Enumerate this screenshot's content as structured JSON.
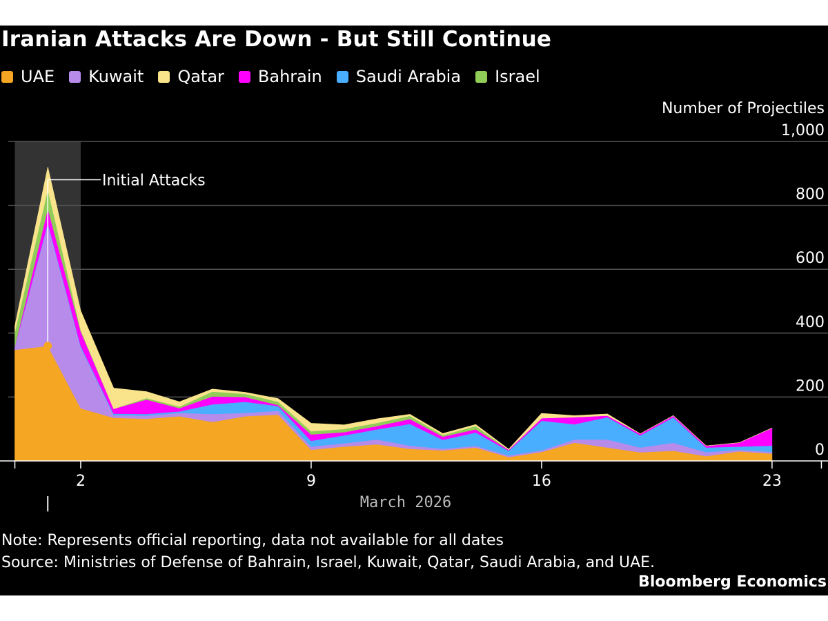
{
  "chart_data": {
    "type": "area",
    "stacked": true,
    "title": "Iranian Attacks Are Down - But Still Continue",
    "ylabel": "Number of Projectiles",
    "ylim": [
      0,
      1000
    ],
    "yticks": [
      0,
      200,
      400,
      600,
      800,
      1000
    ],
    "ytick_labels": [
      "0",
      "200",
      "400",
      "600",
      "800",
      "1,000"
    ],
    "xlabel": "March 2026",
    "x": [
      28,
      29,
      30,
      31,
      32,
      33,
      34,
      35,
      36,
      37,
      38,
      39,
      40,
      41,
      42,
      43,
      44,
      45,
      46,
      47,
      48,
      49,
      50,
      51
    ],
    "xlim": [
      27.8,
      52.7
    ],
    "xticks": [
      30,
      37,
      44,
      51
    ],
    "xtick_labels": [
      "2",
      "9",
      "16",
      "23"
    ],
    "extra_tick_label": {
      "x": 29,
      "label": "|"
    },
    "grid": true,
    "legend_position": "top",
    "series": [
      {
        "name": "UAE",
        "color": "#f5a623",
        "values": [
          348,
          360,
          165,
          135,
          132,
          140,
          122,
          140,
          145,
          35,
          45,
          52,
          38,
          33,
          42,
          12,
          28,
          57,
          42,
          27,
          32,
          15,
          30,
          23
        ]
      },
      {
        "name": "Kuwait",
        "color": "#b78bea",
        "values": [
          10,
          380,
          190,
          8,
          10,
          10,
          25,
          10,
          12,
          10,
          10,
          15,
          10,
          5,
          5,
          5,
          5,
          10,
          25,
          15,
          25,
          12,
          5,
          5
        ]
      },
      {
        "name": "Saudi Arabia",
        "color": "#4aaeff",
        "values": [
          0,
          5,
          5,
          5,
          5,
          5,
          30,
          35,
          15,
          18,
          25,
          32,
          68,
          28,
          42,
          15,
          93,
          48,
          70,
          38,
          80,
          15,
          10,
          20
        ]
      },
      {
        "name": "Bahrain",
        "color": "#ff00ff",
        "values": [
          0,
          45,
          45,
          15,
          45,
          10,
          25,
          15,
          3,
          20,
          10,
          10,
          15,
          10,
          10,
          3,
          8,
          22,
          5,
          5,
          5,
          5,
          12,
          55
        ]
      },
      {
        "name": "Israel",
        "color": "#90cc58",
        "values": [
          45,
          60,
          5,
          0,
          5,
          5,
          15,
          10,
          10,
          10,
          10,
          10,
          10,
          5,
          10,
          0,
          0,
          0,
          0,
          0,
          0,
          0,
          0,
          0
        ]
      },
      {
        "name": "Qatar",
        "color": "#f9e38b",
        "values": [
          20,
          70,
          60,
          65,
          20,
          15,
          8,
          5,
          10,
          25,
          13,
          13,
          5,
          5,
          5,
          2,
          15,
          5,
          5,
          0,
          0,
          0,
          0,
          0
        ]
      }
    ],
    "legend_order": [
      "UAE",
      "Kuwait",
      "Qatar",
      "Bahrain",
      "Saudi Arabia",
      "Israel"
    ],
    "highlight_band": {
      "x_range": [
        28,
        30
      ]
    },
    "annotation": {
      "text": "Initial Attacks",
      "x": 29,
      "dot_value": 360,
      "line_value": 880,
      "dot_color": "#f5a623"
    },
    "colors": {
      "background": "#000000",
      "grid": "#555555",
      "band": "#333333",
      "text": "#ffffff",
      "axis_label": "#bbbbbb"
    }
  },
  "footer": {
    "note": "Note: Represents official reporting, data not available for all dates",
    "source": "Source: Ministries of Defense of Bahrain, Israel, Kuwait, Qatar, Saudi Arabia, and UAE.",
    "brand": "Bloomberg Economics"
  }
}
